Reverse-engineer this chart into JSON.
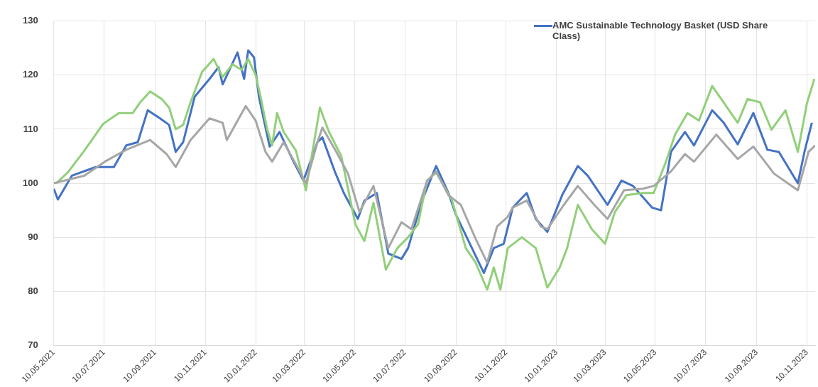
{
  "chart_data": {
    "type": "line",
    "legend": "top right",
    "grid": true,
    "marker": "none",
    "line_style": "solid",
    "xlim": [
      "2021-05-10",
      "2023-11-20"
    ],
    "xticks": [
      {
        "value": "2021-05-10",
        "label": "10.05.2021"
      },
      {
        "value": "2021-07-10",
        "label": "10.07.2021"
      },
      {
        "value": "2021-09-10",
        "label": "10.09.2021"
      },
      {
        "value": "2021-11-10",
        "label": "10.11.2021"
      },
      {
        "value": "2022-01-10",
        "label": "10.01.2022"
      },
      {
        "value": "2022-03-10",
        "label": "10.03.2022"
      },
      {
        "value": "2022-05-10",
        "label": "10.05.2022"
      },
      {
        "value": "2022-07-10",
        "label": "10.07.2022"
      },
      {
        "value": "2022-09-10",
        "label": "10.09.2022"
      },
      {
        "value": "2022-11-10",
        "label": "10.11.2022"
      },
      {
        "value": "2023-01-10",
        "label": "10.01.2023"
      },
      {
        "value": "2023-03-10",
        "label": "10.03.2023"
      },
      {
        "value": "2023-05-10",
        "label": "10.05.2023"
      },
      {
        "value": "2023-07-10",
        "label": "10.07.2023"
      },
      {
        "value": "2023-09-10",
        "label": "10.09.2023"
      },
      {
        "value": "2023-11-10",
        "label": "10.11.2023"
      }
    ],
    "ylim": [
      70,
      130
    ],
    "yticks": [
      70,
      80,
      90,
      100,
      110,
      120,
      130
    ],
    "series": [
      {
        "color": "#a6a6a6",
        "x": [
          "2021-05-10",
          "2021-06-16",
          "2021-07-11",
          "2021-08-06",
          "2021-09-04",
          "2021-09-24",
          "2021-10-05",
          "2021-10-23",
          "2021-11-15",
          "2021-12-01",
          "2021-12-06",
          "2021-12-29",
          "2022-01-10",
          "2022-01-22",
          "2022-01-30",
          "2022-02-13",
          "2022-03-01",
          "2022-03-12",
          "2022-03-26",
          "2022-04-01",
          "2022-04-18",
          "2022-05-02",
          "2022-05-16",
          "2022-06-02",
          "2022-06-20",
          "2022-07-06",
          "2022-07-18",
          "2022-08-06",
          "2022-08-17",
          "2022-09-01",
          "2022-09-16",
          "2022-10-04",
          "2022-10-18",
          "2022-10-30",
          "2022-11-12",
          "2022-11-18",
          "2022-12-05",
          "2022-12-22",
          "2022-12-30",
          "2023-01-19",
          "2023-02-05",
          "2023-02-25",
          "2023-03-13",
          "2023-04-02",
          "2023-04-25",
          "2023-05-08",
          "2023-05-29",
          "2023-06-15",
          "2023-06-26",
          "2023-07-23",
          "2023-08-18",
          "2023-09-06",
          "2023-10-01",
          "2023-10-30",
          "2023-11-12",
          "2023-11-20"
        ],
        "values": [
          100,
          101.4,
          104,
          106.2,
          108,
          105.4,
          103,
          108,
          112,
          111.2,
          108,
          114.3,
          111.6,
          105.8,
          104,
          107.6,
          103.2,
          100,
          107.6,
          110.3,
          105.8,
          101.8,
          94.7,
          99.5,
          88,
          92.8,
          91.5,
          100.4,
          102.2,
          97.8,
          96,
          89.7,
          85.3,
          92,
          93.8,
          95.5,
          96.8,
          92,
          91.5,
          96,
          99.5,
          96,
          93.4,
          98.7,
          99,
          99.5,
          102.2,
          105.4,
          104,
          109,
          104.5,
          106.8,
          101.8,
          98.7,
          105.8,
          107
        ]
      },
      {
        "color": "#92cf7a",
        "x": [
          "2021-05-13",
          "2021-05-27",
          "2021-06-16",
          "2021-07-09",
          "2021-07-28",
          "2021-08-14",
          "2021-08-23",
          "2021-09-04",
          "2021-09-18",
          "2021-09-27",
          "2021-10-05",
          "2021-10-14",
          "2021-10-23",
          "2021-11-06",
          "2021-11-20",
          "2021-12-01",
          "2021-12-13",
          "2021-12-24",
          "2022-01-01",
          "2022-01-10",
          "2022-01-16",
          "2022-01-24",
          "2022-01-30",
          "2022-02-05",
          "2022-02-13",
          "2022-02-28",
          "2022-03-12",
          "2022-03-29",
          "2022-04-09",
          "2022-04-24",
          "2022-05-11",
          "2022-05-22",
          "2022-06-02",
          "2022-06-17",
          "2022-07-01",
          "2022-07-14",
          "2022-07-26",
          "2022-08-06",
          "2022-08-17",
          "2022-09-05",
          "2022-09-22",
          "2022-10-04",
          "2022-10-18",
          "2022-10-26",
          "2022-11-03",
          "2022-11-12",
          "2022-11-29",
          "2022-12-16",
          "2022-12-30",
          "2023-01-14",
          "2023-01-23",
          "2023-02-05",
          "2023-02-22",
          "2023-03-10",
          "2023-03-22",
          "2023-04-05",
          "2023-04-25",
          "2023-05-08",
          "2023-05-23",
          "2023-06-03",
          "2023-06-18",
          "2023-07-02",
          "2023-07-18",
          "2023-07-29",
          "2023-08-18",
          "2023-08-30",
          "2023-09-14",
          "2023-09-28",
          "2023-10-15",
          "2023-10-30",
          "2023-11-10",
          "2023-11-19"
        ],
        "values": [
          100,
          102,
          106,
          111,
          113,
          113,
          115,
          117,
          115.6,
          114,
          110,
          110.8,
          115,
          120.6,
          123,
          119.7,
          122,
          121,
          123,
          120,
          116,
          110,
          107,
          113,
          109.5,
          106,
          98.7,
          114,
          109.5,
          105,
          92.4,
          89.3,
          96.4,
          84,
          88,
          90,
          92.4,
          100.5,
          102,
          97,
          88,
          85.3,
          80.3,
          84.4,
          80.3,
          88,
          90,
          88,
          80.7,
          84.4,
          88,
          96,
          91.5,
          88.8,
          94.7,
          97.8,
          98.2,
          98.2,
          104,
          109,
          113,
          111.6,
          118,
          115.6,
          111.2,
          115.6,
          115,
          109.9,
          113.5,
          105.8,
          114.8,
          119.3
        ]
      },
      {
        "name": "AMC Sustainable Technology Basket (USD Share Class)",
        "color": "#4472c4",
        "x": [
          "2021-05-10",
          "2021-05-15",
          "2021-06-01",
          "2021-06-30",
          "2021-07-22",
          "2021-08-06",
          "2021-08-20",
          "2021-09-01",
          "2021-09-16",
          "2021-09-27",
          "2021-10-05",
          "2021-10-14",
          "2021-10-28",
          "2021-11-15",
          "2021-11-26",
          "2021-12-01",
          "2021-12-19",
          "2021-12-27",
          "2022-01-01",
          "2022-01-08",
          "2022-01-14",
          "2022-01-27",
          "2022-02-08",
          "2022-02-25",
          "2022-03-09",
          "2022-03-26",
          "2022-04-01",
          "2022-04-16",
          "2022-04-27",
          "2022-05-14",
          "2022-05-22",
          "2022-06-06",
          "2022-06-20",
          "2022-07-06",
          "2022-07-14",
          "2022-07-31",
          "2022-08-17",
          "2022-09-01",
          "2022-09-10",
          "2022-09-27",
          "2022-10-14",
          "2022-10-26",
          "2022-11-07",
          "2022-11-18",
          "2022-12-05",
          "2022-12-16",
          "2022-12-30",
          "2023-01-17",
          "2023-02-05",
          "2023-02-17",
          "2023-03-13",
          "2023-03-30",
          "2023-04-13",
          "2023-05-06",
          "2023-05-17",
          "2023-05-29",
          "2023-06-15",
          "2023-06-26",
          "2023-07-18",
          "2023-08-01",
          "2023-08-18",
          "2023-09-06",
          "2023-09-23",
          "2023-10-07",
          "2023-10-30",
          "2023-11-07",
          "2023-11-16"
        ],
        "values": [
          99,
          97,
          101.4,
          103,
          103,
          107,
          107.6,
          113.5,
          112,
          110.8,
          105.8,
          107.6,
          116,
          119.3,
          121.5,
          118.3,
          124.2,
          119.3,
          124.6,
          123.3,
          116,
          106.8,
          109.5,
          104,
          100.5,
          107.6,
          108.5,
          102.2,
          98.2,
          93.4,
          96.8,
          98.2,
          87,
          86,
          88,
          96.8,
          103.2,
          98.2,
          94.2,
          88.8,
          83.4,
          88,
          88.8,
          95.5,
          98.2,
          93.4,
          91,
          97.8,
          103.2,
          101.4,
          96,
          100.5,
          99.5,
          95.5,
          95,
          105.8,
          109.5,
          107,
          113.5,
          111.2,
          107.2,
          113,
          106.2,
          105.8,
          100,
          105.8,
          111.2
        ]
      }
    ]
  }
}
